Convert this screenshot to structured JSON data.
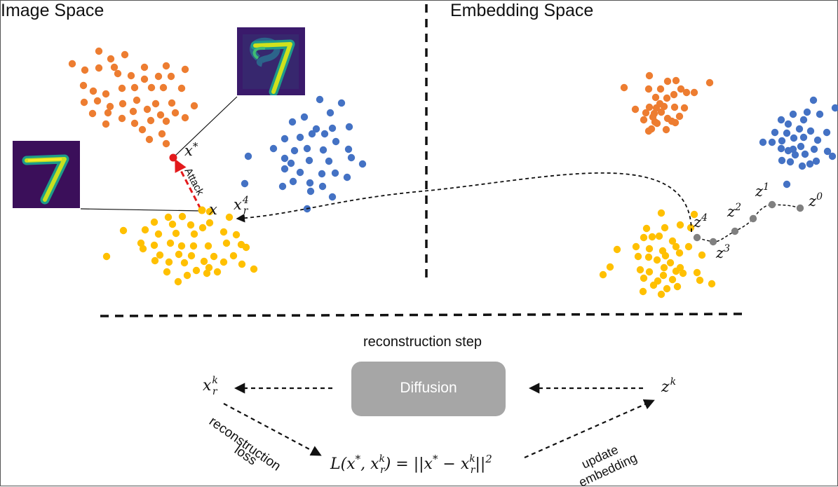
{
  "titles": {
    "image_space": "Image Space",
    "embedding_space": "Embedding Space"
  },
  "image_space": {
    "point_label_x": "x",
    "point_label_xstar": "x",
    "xstar_sup": "*",
    "xr4_base": "x",
    "xr4_sub": "r",
    "xr4_sup": "4",
    "attack_label": "Attack",
    "thumb_clean_digit": "7",
    "thumb_adv_digit": "7"
  },
  "embedding_space": {
    "z_labels": [
      {
        "base": "z",
        "sup": "0"
      },
      {
        "base": "z",
        "sup": "1"
      },
      {
        "base": "z",
        "sup": "2"
      },
      {
        "base": "z",
        "sup": "3"
      },
      {
        "base": "z",
        "sup": "4"
      }
    ]
  },
  "loop": {
    "step_label": "reconstruction step",
    "diffusion_label": "Diffusion",
    "xrk_base": "x",
    "xrk_sub": "r",
    "xrk_sup": "k",
    "zk_base": "z",
    "zk_sup": "k",
    "recon_loss_line1": "reconstruction",
    "recon_loss_line2": "loss",
    "update_line1": "update",
    "update_line2": "embedding",
    "loss_formula": "L(x*, x_r^k) = ||x* − x_r^k||²"
  },
  "colors": {
    "orange": "#ED7D31",
    "blue": "#4472C4",
    "yellow": "#FFC000",
    "gray": "#808080",
    "attack_red": "#E31A1C",
    "diffusion_box": "#A6A6A6"
  }
}
